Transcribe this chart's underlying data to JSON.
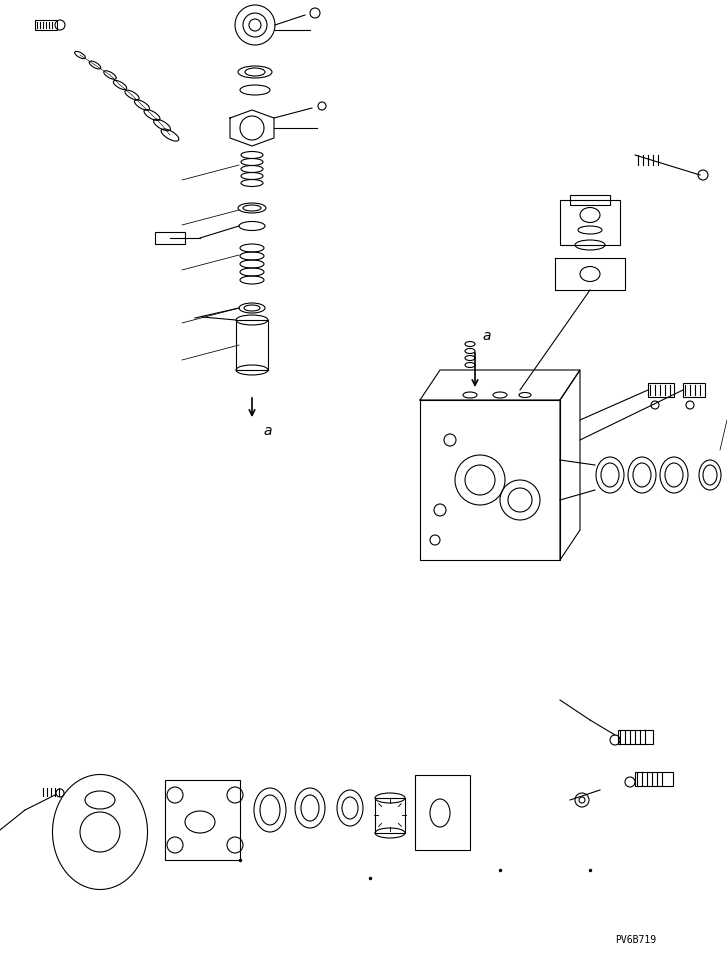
{
  "bg_color": "#ffffff",
  "line_color": "#000000",
  "lw": 0.8,
  "part_code": "PV6B719",
  "label_a": "a",
  "figsize": [
    7.27,
    9.58
  ],
  "dpi": 100
}
